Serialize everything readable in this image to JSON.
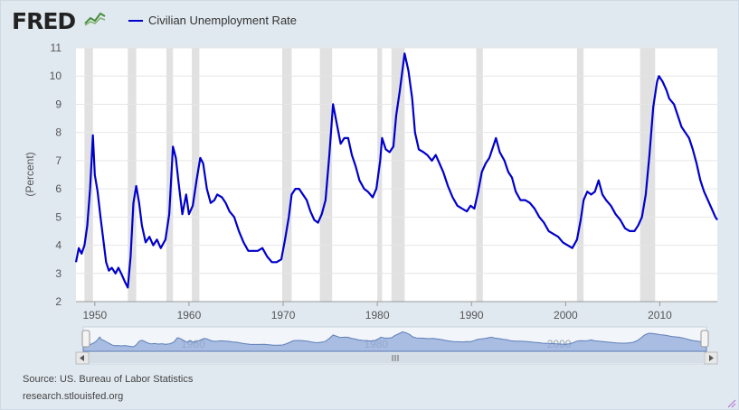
{
  "header": {
    "logo_text": "FRED",
    "logo_icon": "fred-chart-icon"
  },
  "footer": {
    "source": "Source: US. Bureau of Labor Statistics",
    "url": "research.stlouisfed.org"
  },
  "colors": {
    "series": "#0000cc",
    "recession": "#e1e1e1",
    "frame_bg": "#e1e9f0",
    "navigator_fill": "#8fa9d8"
  },
  "chart_data": {
    "type": "line",
    "ylabel": "(Percent)",
    "xlim": [
      1948,
      2016.1
    ],
    "ylim": [
      2,
      11
    ],
    "yticks": [
      2,
      3,
      4,
      5,
      6,
      7,
      8,
      9,
      10,
      11
    ],
    "xticks": [
      1950,
      1960,
      1970,
      1980,
      1990,
      2000,
      2010
    ],
    "navigator_ticks": [
      1960,
      1980,
      2000
    ],
    "grid": true,
    "legend_placement": "top-left",
    "series": [
      {
        "name": "Civilian Unemployment Rate",
        "color": "#0000cc",
        "points": [
          [
            1948.0,
            3.4
          ],
          [
            1948.3,
            3.9
          ],
          [
            1948.6,
            3.7
          ],
          [
            1948.9,
            4.0
          ],
          [
            1949.2,
            4.7
          ],
          [
            1949.5,
            6.0
          ],
          [
            1949.8,
            7.9
          ],
          [
            1950.0,
            6.5
          ],
          [
            1950.3,
            5.9
          ],
          [
            1950.6,
            5.0
          ],
          [
            1950.9,
            4.2
          ],
          [
            1951.2,
            3.4
          ],
          [
            1951.5,
            3.1
          ],
          [
            1951.8,
            3.2
          ],
          [
            1952.2,
            3.0
          ],
          [
            1952.5,
            3.2
          ],
          [
            1952.8,
            3.0
          ],
          [
            1953.2,
            2.7
          ],
          [
            1953.5,
            2.5
          ],
          [
            1953.8,
            3.6
          ],
          [
            1954.1,
            5.5
          ],
          [
            1954.4,
            6.1
          ],
          [
            1954.7,
            5.5
          ],
          [
            1955.0,
            4.7
          ],
          [
            1955.4,
            4.1
          ],
          [
            1955.8,
            4.3
          ],
          [
            1956.2,
            4.0
          ],
          [
            1956.6,
            4.2
          ],
          [
            1957.0,
            3.9
          ],
          [
            1957.5,
            4.2
          ],
          [
            1957.9,
            5.1
          ],
          [
            1958.3,
            7.5
          ],
          [
            1958.6,
            7.1
          ],
          [
            1958.9,
            6.2
          ],
          [
            1959.3,
            5.1
          ],
          [
            1959.7,
            5.8
          ],
          [
            1960.0,
            5.1
          ],
          [
            1960.4,
            5.4
          ],
          [
            1960.8,
            6.3
          ],
          [
            1961.2,
            7.1
          ],
          [
            1961.5,
            6.9
          ],
          [
            1961.9,
            6.0
          ],
          [
            1962.3,
            5.5
          ],
          [
            1962.7,
            5.6
          ],
          [
            1963.0,
            5.8
          ],
          [
            1963.5,
            5.7
          ],
          [
            1963.9,
            5.5
          ],
          [
            1964.3,
            5.2
          ],
          [
            1964.8,
            5.0
          ],
          [
            1965.3,
            4.5
          ],
          [
            1965.8,
            4.1
          ],
          [
            1966.3,
            3.8
          ],
          [
            1966.8,
            3.8
          ],
          [
            1967.3,
            3.8
          ],
          [
            1967.8,
            3.9
          ],
          [
            1968.3,
            3.6
          ],
          [
            1968.8,
            3.4
          ],
          [
            1969.3,
            3.4
          ],
          [
            1969.8,
            3.5
          ],
          [
            1970.2,
            4.2
          ],
          [
            1970.6,
            5.0
          ],
          [
            1970.9,
            5.8
          ],
          [
            1971.3,
            6.0
          ],
          [
            1971.7,
            6.0
          ],
          [
            1972.1,
            5.8
          ],
          [
            1972.5,
            5.6
          ],
          [
            1972.9,
            5.2
          ],
          [
            1973.3,
            4.9
          ],
          [
            1973.7,
            4.8
          ],
          [
            1974.1,
            5.1
          ],
          [
            1974.5,
            5.6
          ],
          [
            1974.9,
            7.2
          ],
          [
            1975.3,
            9.0
          ],
          [
            1975.7,
            8.3
          ],
          [
            1976.1,
            7.6
          ],
          [
            1976.5,
            7.8
          ],
          [
            1976.9,
            7.8
          ],
          [
            1977.3,
            7.2
          ],
          [
            1977.7,
            6.8
          ],
          [
            1978.1,
            6.3
          ],
          [
            1978.6,
            6.0
          ],
          [
            1979.0,
            5.9
          ],
          [
            1979.5,
            5.7
          ],
          [
            1979.9,
            6.0
          ],
          [
            1980.3,
            7.0
          ],
          [
            1980.5,
            7.8
          ],
          [
            1980.9,
            7.4
          ],
          [
            1981.3,
            7.3
          ],
          [
            1981.7,
            7.5
          ],
          [
            1982.0,
            8.6
          ],
          [
            1982.4,
            9.5
          ],
          [
            1982.9,
            10.8
          ],
          [
            1983.3,
            10.2
          ],
          [
            1983.7,
            9.2
          ],
          [
            1984.0,
            8.0
          ],
          [
            1984.4,
            7.4
          ],
          [
            1984.9,
            7.3
          ],
          [
            1985.3,
            7.2
          ],
          [
            1985.8,
            7.0
          ],
          [
            1986.2,
            7.2
          ],
          [
            1986.6,
            6.9
          ],
          [
            1987.0,
            6.6
          ],
          [
            1987.5,
            6.1
          ],
          [
            1988.0,
            5.7
          ],
          [
            1988.5,
            5.4
          ],
          [
            1989.0,
            5.3
          ],
          [
            1989.5,
            5.2
          ],
          [
            1989.9,
            5.4
          ],
          [
            1990.3,
            5.3
          ],
          [
            1990.7,
            5.9
          ],
          [
            1991.1,
            6.6
          ],
          [
            1991.5,
            6.9
          ],
          [
            1991.9,
            7.1
          ],
          [
            1992.3,
            7.5
          ],
          [
            1992.6,
            7.8
          ],
          [
            1993.0,
            7.3
          ],
          [
            1993.5,
            7.0
          ],
          [
            1993.9,
            6.6
          ],
          [
            1994.3,
            6.4
          ],
          [
            1994.7,
            5.9
          ],
          [
            1995.2,
            5.6
          ],
          [
            1995.7,
            5.6
          ],
          [
            1996.2,
            5.5
          ],
          [
            1996.7,
            5.3
          ],
          [
            1997.2,
            5.0
          ],
          [
            1997.7,
            4.8
          ],
          [
            1998.2,
            4.5
          ],
          [
            1998.7,
            4.4
          ],
          [
            1999.2,
            4.3
          ],
          [
            1999.7,
            4.1
          ],
          [
            2000.2,
            4.0
          ],
          [
            2000.7,
            3.9
          ],
          [
            2001.2,
            4.2
          ],
          [
            2001.6,
            4.9
          ],
          [
            2001.9,
            5.6
          ],
          [
            2002.3,
            5.9
          ],
          [
            2002.7,
            5.8
          ],
          [
            2003.1,
            5.9
          ],
          [
            2003.5,
            6.3
          ],
          [
            2003.9,
            5.8
          ],
          [
            2004.3,
            5.6
          ],
          [
            2004.8,
            5.4
          ],
          [
            2005.3,
            5.1
          ],
          [
            2005.8,
            4.9
          ],
          [
            2006.3,
            4.6
          ],
          [
            2006.8,
            4.5
          ],
          [
            2007.3,
            4.5
          ],
          [
            2007.7,
            4.7
          ],
          [
            2008.1,
            5.0
          ],
          [
            2008.5,
            5.8
          ],
          [
            2008.9,
            7.2
          ],
          [
            2009.3,
            8.9
          ],
          [
            2009.7,
            9.8
          ],
          [
            2009.9,
            10.0
          ],
          [
            2010.3,
            9.8
          ],
          [
            2010.7,
            9.5
          ],
          [
            2011.0,
            9.2
          ],
          [
            2011.5,
            9.0
          ],
          [
            2011.9,
            8.6
          ],
          [
            2012.3,
            8.2
          ],
          [
            2012.7,
            8.0
          ],
          [
            2013.1,
            7.8
          ],
          [
            2013.5,
            7.4
          ],
          [
            2013.9,
            6.9
          ],
          [
            2014.3,
            6.3
          ],
          [
            2014.7,
            5.9
          ],
          [
            2015.1,
            5.6
          ],
          [
            2015.5,
            5.3
          ],
          [
            2015.9,
            5.0
          ],
          [
            2016.1,
            4.9
          ]
        ]
      }
    ],
    "recessions": [
      [
        1948.9,
        1949.8
      ],
      [
        1953.5,
        1954.4
      ],
      [
        1957.6,
        1958.3
      ],
      [
        1960.3,
        1961.1
      ],
      [
        1969.9,
        1970.9
      ],
      [
        1973.9,
        1975.2
      ],
      [
        1980.0,
        1980.5
      ],
      [
        1981.5,
        1982.9
      ],
      [
        1990.5,
        1991.2
      ],
      [
        2001.2,
        2001.9
      ],
      [
        2007.9,
        2009.5
      ]
    ]
  }
}
